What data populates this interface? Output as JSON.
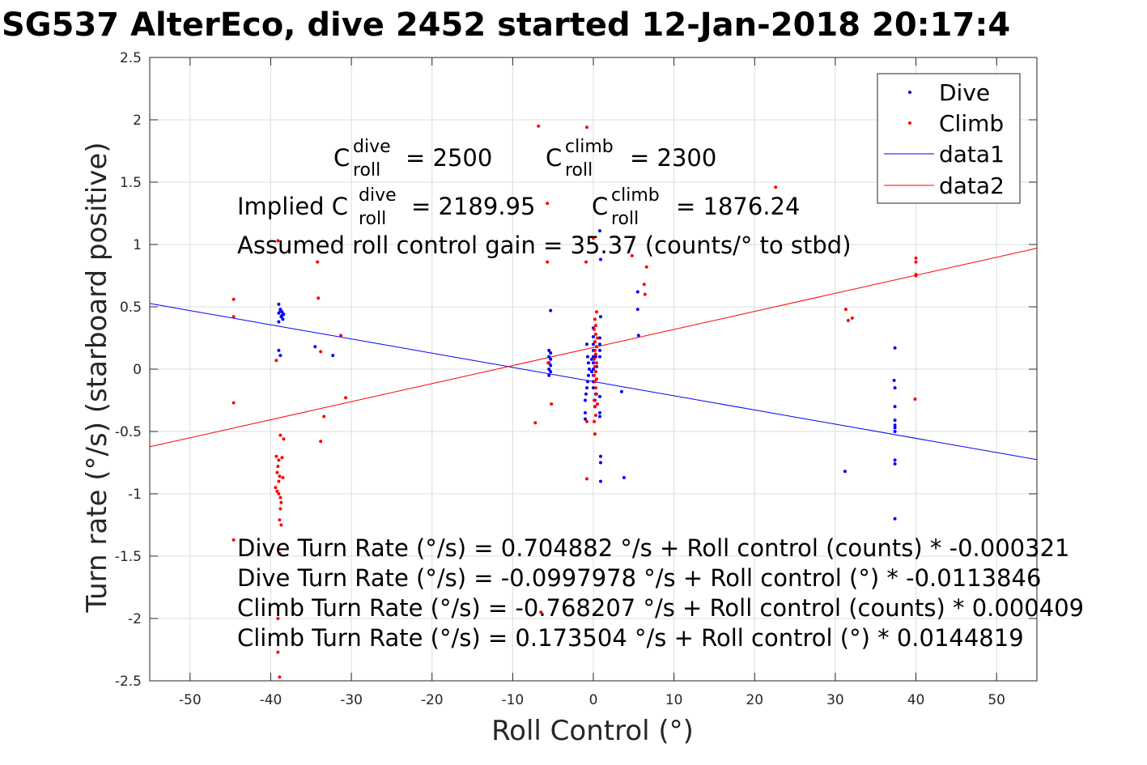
{
  "title": "SG537 AlterEco, dive 2452 started 12-Jan-2018 20:17:4",
  "chart_data": {
    "type": "scatter",
    "xlabel": "Roll Control (°)",
    "ylabel": "Turn rate (°/s) (starboard positive)",
    "xlim": [
      -55,
      55
    ],
    "ylim": [
      -2.5,
      2.5
    ],
    "grid": true,
    "legend_position": "top-right",
    "x_ticks": [
      -50,
      -40,
      -30,
      -20,
      -10,
      0,
      10,
      20,
      30,
      40,
      50
    ],
    "x_tick_labels": [
      "-50",
      "-40",
      "-30",
      "-20",
      "-10",
      "0",
      "10",
      "20",
      "30",
      "40",
      "50"
    ],
    "y_ticks": [
      -2.5,
      -2,
      -1.5,
      -1,
      -0.5,
      0,
      0.5,
      1,
      1.5,
      2,
      2.5
    ],
    "y_tick_labels": [
      "-2.5",
      "-2",
      "-1.5",
      "-1",
      "-0.5",
      "0",
      "0.5",
      "1",
      "1.5",
      "2",
      "2.5"
    ],
    "colors": {
      "dive": "#0000ff",
      "climb": "#ff0000"
    },
    "series": [
      {
        "name": "Dive",
        "kind": "points",
        "color": "#0000ff",
        "points": [
          [
            -39,
            0.52
          ],
          [
            -38.8,
            0.48
          ],
          [
            -38.6,
            0.46
          ],
          [
            -38.4,
            0.44
          ],
          [
            -39,
            0.45
          ],
          [
            -38.7,
            0.42
          ],
          [
            -38.5,
            0.4
          ],
          [
            -39,
            0.38
          ],
          [
            -38.8,
            0.47
          ],
          [
            -38.6,
            0.43
          ],
          [
            -39,
            0.15
          ],
          [
            -38.8,
            0.11
          ],
          [
            -34.5,
            0.18
          ],
          [
            -32.3,
            0.11
          ],
          [
            -5.3,
            0.47
          ],
          [
            -5.5,
            0.15
          ],
          [
            -5.3,
            0.13
          ],
          [
            -5.5,
            0.1
          ],
          [
            -5.3,
            0.08
          ],
          [
            -5.5,
            0.05
          ],
          [
            -5.3,
            0.03
          ],
          [
            -5.5,
            0.0
          ],
          [
            -5.3,
            -0.02
          ],
          [
            -5.5,
            -0.05
          ],
          [
            -0.8,
            0.2
          ],
          [
            -0.7,
            0.1
          ],
          [
            -0.6,
            0.05
          ],
          [
            -0.5,
            0.0
          ],
          [
            -0.6,
            -0.05
          ],
          [
            -0.7,
            -0.1
          ],
          [
            -0.8,
            -0.15
          ],
          [
            -0.9,
            -0.2
          ],
          [
            -1.0,
            -0.25
          ],
          [
            -1.0,
            -0.35
          ],
          [
            -1.0,
            -0.4
          ],
          [
            0.0,
            0.33
          ],
          [
            0.0,
            0.26
          ],
          [
            0.0,
            0.2
          ],
          [
            0.0,
            0.15
          ],
          [
            0.0,
            0.1
          ],
          [
            0.0,
            0.05
          ],
          [
            0.0,
            0.0
          ],
          [
            0.0,
            -0.05
          ],
          [
            0.0,
            -0.1
          ],
          [
            0.0,
            -0.15
          ],
          [
            0.3,
            -0.2
          ],
          [
            0.2,
            -0.25
          ],
          [
            0.2,
            -0.3
          ],
          [
            -0.2,
            0.08
          ],
          [
            -0.2,
            -0.02
          ],
          [
            0.3,
            0.1
          ],
          [
            0.4,
            0.02
          ],
          [
            0.8,
            1.11
          ],
          [
            0.9,
            0.88
          ],
          [
            0.9,
            0.42
          ],
          [
            0.8,
            0.25
          ],
          [
            0.8,
            0.2
          ],
          [
            0.8,
            0.15
          ],
          [
            0.8,
            0.1
          ],
          [
            0.8,
            -0.22
          ],
          [
            0.8,
            -0.35
          ],
          [
            0.8,
            -0.38
          ],
          [
            0.9,
            -0.7
          ],
          [
            0.9,
            -0.75
          ],
          [
            0.9,
            -0.9
          ],
          [
            3.5,
            -0.18
          ],
          [
            3.8,
            -0.87
          ],
          [
            5.5,
            0.62
          ],
          [
            5.5,
            0.48
          ],
          [
            5.6,
            0.27
          ],
          [
            31.2,
            -0.82
          ],
          [
            37.4,
            0.17
          ],
          [
            37.3,
            -0.09
          ],
          [
            37.4,
            -0.15
          ],
          [
            37.4,
            -0.3
          ],
          [
            37.4,
            -0.41
          ],
          [
            37.4,
            -0.45
          ],
          [
            37.4,
            -0.47
          ],
          [
            37.4,
            -0.5
          ],
          [
            37.4,
            -0.73
          ],
          [
            37.4,
            -0.76
          ],
          [
            37.4,
            -1.2
          ]
        ]
      },
      {
        "name": "Climb",
        "kind": "points",
        "color": "#ff0000",
        "points": [
          [
            -44.6,
            0.56
          ],
          [
            -44.6,
            0.42
          ],
          [
            -44.6,
            -0.27
          ],
          [
            -44.6,
            -1.37
          ],
          [
            -39.1,
            1.03
          ],
          [
            -39.3,
            0.07
          ],
          [
            -38.8,
            -0.53
          ],
          [
            -38.4,
            -0.56
          ],
          [
            -39.3,
            -0.7
          ],
          [
            -39.0,
            -0.73
          ],
          [
            -38.6,
            -0.71
          ],
          [
            -39.1,
            -0.78
          ],
          [
            -39.2,
            -0.83
          ],
          [
            -38.9,
            -0.86
          ],
          [
            -39.0,
            -0.9
          ],
          [
            -38.5,
            -0.87
          ],
          [
            -39.4,
            -0.95
          ],
          [
            -39.2,
            -0.98
          ],
          [
            -39.0,
            -1.0
          ],
          [
            -38.8,
            -1.03
          ],
          [
            -38.7,
            -1.07
          ],
          [
            -38.8,
            -1.12
          ],
          [
            -38.9,
            -1.21
          ],
          [
            -38.7,
            -1.25
          ],
          [
            -38.9,
            -1.48
          ],
          [
            -39.1,
            -2.0
          ],
          [
            -39.1,
            -2.27
          ],
          [
            -38.9,
            -2.47
          ],
          [
            -34.2,
            0.86
          ],
          [
            -34.1,
            0.57
          ],
          [
            -33.8,
            0.14
          ],
          [
            -31.3,
            0.27
          ],
          [
            -33.4,
            -0.38
          ],
          [
            -33.8,
            -0.58
          ],
          [
            -30.7,
            -0.23
          ],
          [
            -6.8,
            1.95
          ],
          [
            -5.7,
            1.33
          ],
          [
            -5.7,
            0.86
          ],
          [
            -5.6,
            0.05
          ],
          [
            -5.2,
            -0.28
          ],
          [
            -7.2,
            -0.43
          ],
          [
            -6.5,
            -1.95
          ],
          [
            -0.8,
            1.94
          ],
          [
            -0.9,
            0.86
          ],
          [
            -0.8,
            -0.42
          ],
          [
            -0.8,
            -0.88
          ],
          [
            0.0,
            1.05
          ],
          [
            0.4,
            0.46
          ],
          [
            0.2,
            0.4
          ],
          [
            0.3,
            0.35
          ],
          [
            0.1,
            0.32
          ],
          [
            0.3,
            0.28
          ],
          [
            0.5,
            0.25
          ],
          [
            0.2,
            0.22
          ],
          [
            0.4,
            0.18
          ],
          [
            0.2,
            0.15
          ],
          [
            0.3,
            0.12
          ],
          [
            0.1,
            0.08
          ],
          [
            0.4,
            0.05
          ],
          [
            0.2,
            0.02
          ],
          [
            0.3,
            -0.02
          ],
          [
            0.1,
            -0.05
          ],
          [
            0.4,
            -0.08
          ],
          [
            0.2,
            -0.1
          ],
          [
            0.3,
            -0.15
          ],
          [
            0.4,
            -0.2
          ],
          [
            0.1,
            -0.25
          ],
          [
            0.5,
            -0.28
          ],
          [
            0.2,
            -0.3
          ],
          [
            0.3,
            -0.37
          ],
          [
            0.1,
            -0.42
          ],
          [
            0.2,
            -0.52
          ],
          [
            4.8,
            0.91
          ],
          [
            6.6,
            0.82
          ],
          [
            6.3,
            0.68
          ],
          [
            6.4,
            0.6
          ],
          [
            22.6,
            1.46
          ],
          [
            31.3,
            0.48
          ],
          [
            31.6,
            0.39
          ],
          [
            32.1,
            0.41
          ],
          [
            40.0,
            0.89
          ],
          [
            40.0,
            0.86
          ],
          [
            40.0,
            0.76
          ],
          [
            40.0,
            0.75
          ],
          [
            39.9,
            -0.24
          ]
        ]
      },
      {
        "name": "data1",
        "kind": "line",
        "color": "#0000ff",
        "x": [
          -55,
          55
        ],
        "y": [
          0.5266,
          -0.7262
        ]
      },
      {
        "name": "data2",
        "kind": "line",
        "color": "#ff0000",
        "x": [
          -55,
          55
        ],
        "y": [
          -0.623,
          0.97
        ]
      }
    ],
    "annotations": {
      "c_dive_prefix": "C",
      "c_dive_sup": "dive",
      "c_dive_sub": "roll",
      "c_dive_value": "= 2500",
      "c_climb_prefix": "C",
      "c_climb_sup": "climb",
      "c_climb_sub": "roll",
      "c_climb_value": "= 2300",
      "implied_prefix": "Implied C",
      "implied_dive_sup": "dive",
      "implied_dive_sub": "roll",
      "implied_dive_value": "= 2189.95",
      "implied_climb_prefix": "C",
      "implied_climb_sup": "climb",
      "implied_climb_sub": "roll",
      "implied_climb_value": "= 1876.24",
      "gain": "Assumed roll control gain = 35.37 (counts/° to stbd)",
      "eq1": "Dive Turn Rate (°/s) = 0.704882 °/s + Roll control (counts) * -0.000321",
      "eq2": "Dive Turn Rate (°/s) = -0.0997978 °/s + Roll control (°) * -0.0113846",
      "eq3": "Climb Turn Rate (°/s) = -0.768207 °/s + Roll control (counts) * 0.000409",
      "eq4": "Climb Turn Rate (°/s) = 0.173504 °/s + Roll control (°) * 0.0144819"
    }
  }
}
